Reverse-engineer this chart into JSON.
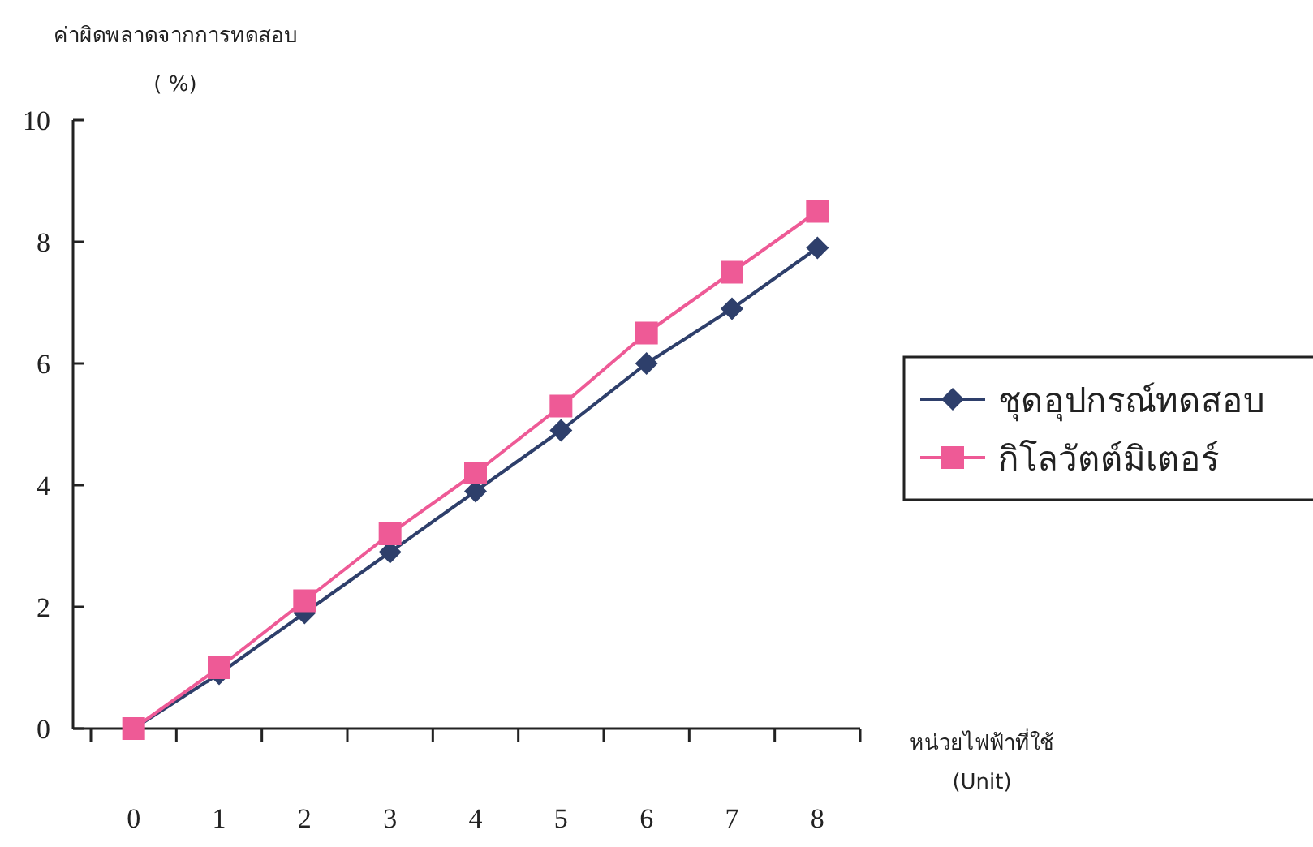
{
  "chart_data": {
    "type": "line",
    "ylabel": "ค่าผิดพลาดจากการทดสอบ\n( %)",
    "xlabel": "หน่วยไฟฟ้าที่ใช้\n(Unit)",
    "categories": [
      "0",
      "1",
      "2",
      "3",
      "4",
      "5",
      "6",
      "7",
      "8"
    ],
    "series": [
      {
        "name": "ชุดอุปกรณ์ทดสอบ",
        "color": "#2e3f6b",
        "marker": "diamond",
        "values": [
          0,
          0.9,
          1.9,
          2.9,
          3.9,
          4.9,
          6.0,
          6.9,
          7.9
        ]
      },
      {
        "name": "กิโลวัตต์มิเตอร์",
        "color": "#ee5a96",
        "marker": "square",
        "values": [
          0,
          1.0,
          2.1,
          3.2,
          4.2,
          5.3,
          6.5,
          7.5,
          8.5
        ]
      }
    ],
    "ylim": [
      0,
      10
    ],
    "yticks": [
      0,
      2,
      4,
      6,
      8,
      10
    ],
    "grid": false,
    "legend": "right",
    "line_style": "solid"
  }
}
